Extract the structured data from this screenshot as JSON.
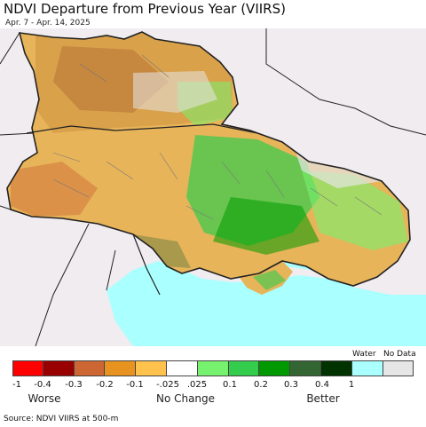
{
  "header": {
    "title": "NDVI Departure from Previous Year (VIIRS)",
    "date_range": "Apr. 7 - Apr. 14, 2025"
  },
  "legend": {
    "water_label": "Water",
    "nodata_label": "No Data",
    "items": [
      {
        "color": "#ff0000"
      },
      {
        "color": "#990000"
      },
      {
        "color": "#cc6633"
      },
      {
        "color": "#e8931f"
      },
      {
        "color": "#ffc34d"
      },
      {
        "color": "#ffffff"
      },
      {
        "color": "#77f26e"
      },
      {
        "color": "#33cc4c"
      },
      {
        "color": "#009a00"
      },
      {
        "color": "#336633"
      },
      {
        "color": "#003300"
      },
      {
        "color": "#aaffff"
      },
      {
        "color": "#e6e6e6"
      }
    ],
    "ticks": [
      "-1",
      "-0.4",
      "-0.3",
      "-0.2",
      "-0.1",
      "-.025",
      ".025",
      "0.1",
      "0.2",
      "0.3",
      "0.4",
      "1"
    ],
    "categories": {
      "worse": "Worse",
      "no_change": "No Change",
      "better": "Better"
    }
  },
  "footer": {
    "source": "Source: NDVI VIIRS at 500-m"
  },
  "map": {
    "colors": {
      "background": "#f0ecf0",
      "sea": "#aaffff",
      "land_base": "#e8b45a",
      "border": "#222222"
    }
  }
}
